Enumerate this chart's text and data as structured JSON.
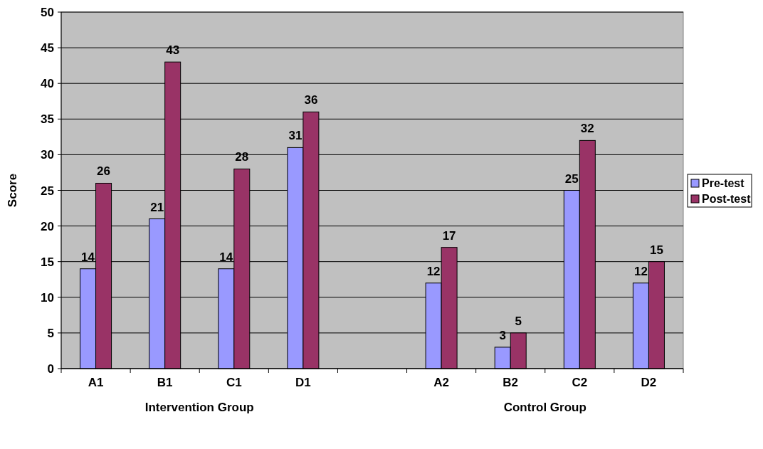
{
  "chart_data": {
    "type": "bar",
    "ylabel": "Score",
    "categories": [
      "A1",
      "B1",
      "C1",
      "D1",
      null,
      "A2",
      "B2",
      "C2",
      "D2"
    ],
    "series": [
      {
        "name": "Pre-test",
        "color": "#9999ff",
        "values": [
          14,
          21,
          14,
          31,
          null,
          12,
          3,
          25,
          12
        ]
      },
      {
        "name": "Post-test",
        "color": "#993366",
        "values": [
          26,
          43,
          28,
          36,
          null,
          17,
          5,
          32,
          15
        ]
      }
    ],
    "ylim": [
      0,
      50
    ],
    "yticks": [
      0,
      5,
      10,
      15,
      20,
      25,
      30,
      35,
      40,
      45,
      50
    ],
    "grid": "y",
    "legend": "right",
    "data_labels": true,
    "annotations": [
      "Intervention Group",
      "Control Group"
    ]
  }
}
